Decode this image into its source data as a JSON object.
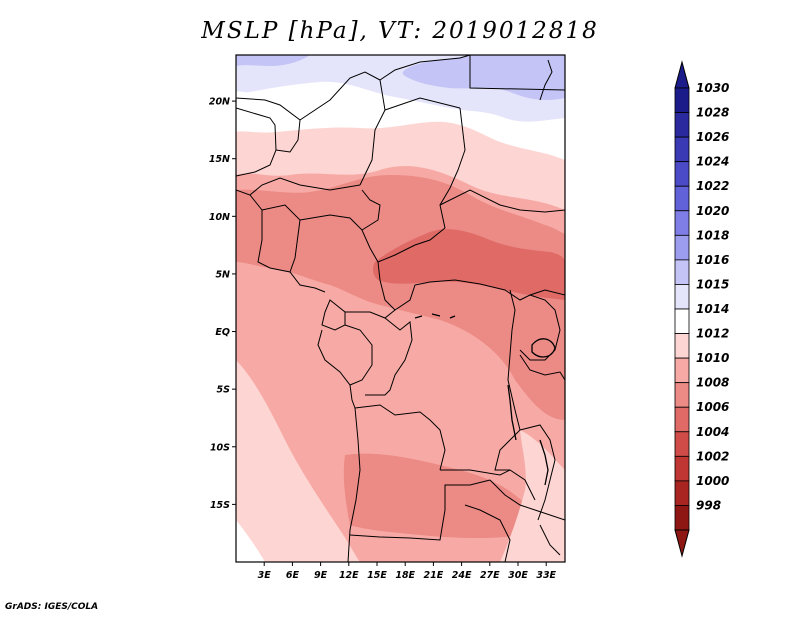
{
  "title": "MSLP [hPa], VT: 2019012818",
  "credit": "GrADS: IGES/COLA",
  "map": {
    "lon_range": [
      0,
      35
    ],
    "lat_range": [
      -20,
      24
    ],
    "lat_ticks": [
      {
        "value": 20,
        "label": "20N"
      },
      {
        "value": 15,
        "label": "15N"
      },
      {
        "value": 10,
        "label": "10N"
      },
      {
        "value": 5,
        "label": "5N"
      },
      {
        "value": 0,
        "label": "EQ"
      },
      {
        "value": -5,
        "label": "5S"
      },
      {
        "value": -10,
        "label": "10S"
      },
      {
        "value": -15,
        "label": "15S"
      }
    ],
    "lon_ticks": [
      {
        "value": 3,
        "label": "3E"
      },
      {
        "value": 6,
        "label": "6E"
      },
      {
        "value": 9,
        "label": "9E"
      },
      {
        "value": 12,
        "label": "12E"
      },
      {
        "value": 15,
        "label": "15E"
      },
      {
        "value": 18,
        "label": "18E"
      },
      {
        "value": 21,
        "label": "21E"
      },
      {
        "value": 24,
        "label": "24E"
      },
      {
        "value": 27,
        "label": "27E"
      },
      {
        "value": 30,
        "label": "30E"
      },
      {
        "value": 33,
        "label": "33E"
      }
    ]
  },
  "colorbar": {
    "levels": [
      "1030",
      "1028",
      "1026",
      "1024",
      "1022",
      "1020",
      "1018",
      "1016",
      "1015",
      "1014",
      "1012",
      "1010",
      "1008",
      "1006",
      "1004",
      "1002",
      "1000",
      "998"
    ],
    "colors": [
      "#1b1b8a",
      "#2a2a9e",
      "#3a3ab4",
      "#4b4bc8",
      "#6262d8",
      "#7e7ee6",
      "#9d9df0",
      "#c4c4f6",
      "#e4e4fb",
      "#ffffff",
      "#fdd6d3",
      "#f7aaa5",
      "#ec8a85",
      "#df6a66",
      "#d04c48",
      "#bf3633",
      "#a92522",
      "#8e1714"
    ]
  },
  "colors": {
    "p1016": "#c4c4f6",
    "p1015": "#e4e4fb",
    "p1014": "#ffffff",
    "p1012": "#fdd6d3",
    "p1010": "#f7aaa5",
    "p1008": "#ec8a85",
    "p1006": "#df6a66"
  }
}
